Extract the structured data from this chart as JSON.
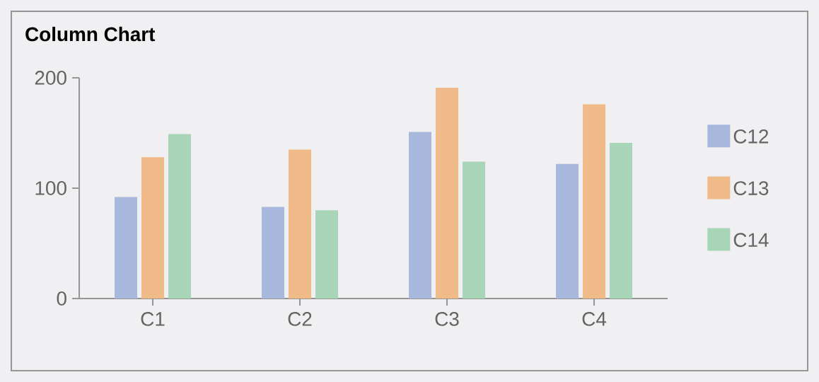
{
  "chart_data": {
    "type": "bar",
    "title": "Column Chart",
    "categories": [
      "C1",
      "C2",
      "C3",
      "C4"
    ],
    "series": [
      {
        "name": "C12",
        "color": "#a8b8dc",
        "values": [
          92,
          83,
          151,
          122
        ]
      },
      {
        "name": "C13",
        "color": "#f0bb88",
        "values": [
          128,
          135,
          191,
          176
        ]
      },
      {
        "name": "C14",
        "color": "#a8d5b8",
        "values": [
          149,
          80,
          124,
          141
        ]
      }
    ],
    "ylim": [
      0,
      200
    ],
    "yticks": [
      0,
      100,
      200
    ],
    "grid": false,
    "legend": "right"
  }
}
